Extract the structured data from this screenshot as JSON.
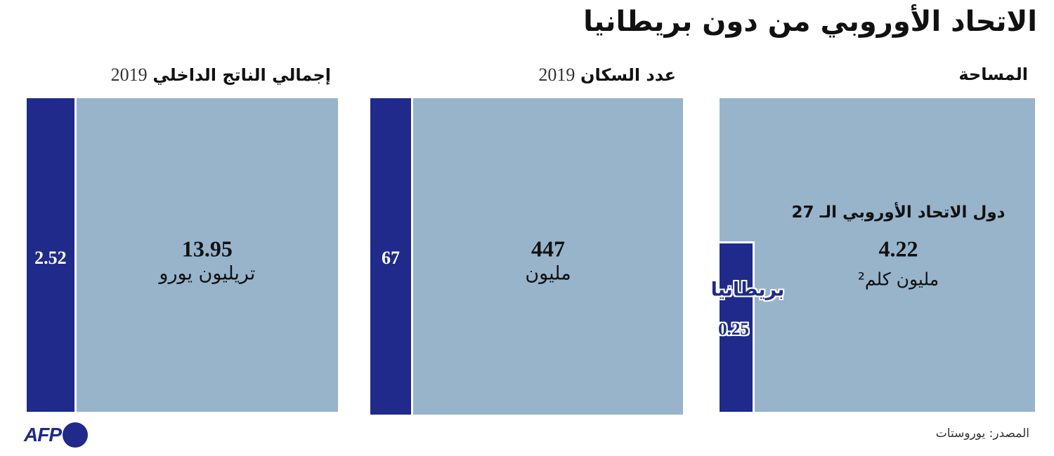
{
  "title": "الاتحاد الأوروبي من دون بريطانيا",
  "source": "المصدر: يوروستات",
  "logo": "AFP",
  "chart_data": [
    {
      "type": "square",
      "title": "المساحة",
      "series": [
        {
          "name": "دول الاتحاد الأوروبي الـ 27",
          "color": "#97b4cb",
          "values": [
            4.22
          ],
          "unit": "مليون كلم²"
        },
        {
          "name": "بريطانيا",
          "color": "#1f2a8a",
          "values": [
            0.25
          ]
        }
      ]
    },
    {
      "type": "bar",
      "title": "عدد السكان",
      "subtitle": "2019",
      "series": [
        {
          "color": "#97b4cb",
          "values": [
            447
          ],
          "unit": "مليون"
        },
        {
          "color": "#1f2a8a",
          "values": [
            67
          ]
        }
      ]
    },
    {
      "type": "bar",
      "title": "إجمالي الناتج الداخلي",
      "subtitle": "2019",
      "series": [
        {
          "color": "#97b4cb",
          "values": [
            13.95
          ],
          "unit": "تريليون يورو"
        },
        {
          "color": "#1f2a8a",
          "values": [
            2.52
          ]
        }
      ]
    }
  ]
}
